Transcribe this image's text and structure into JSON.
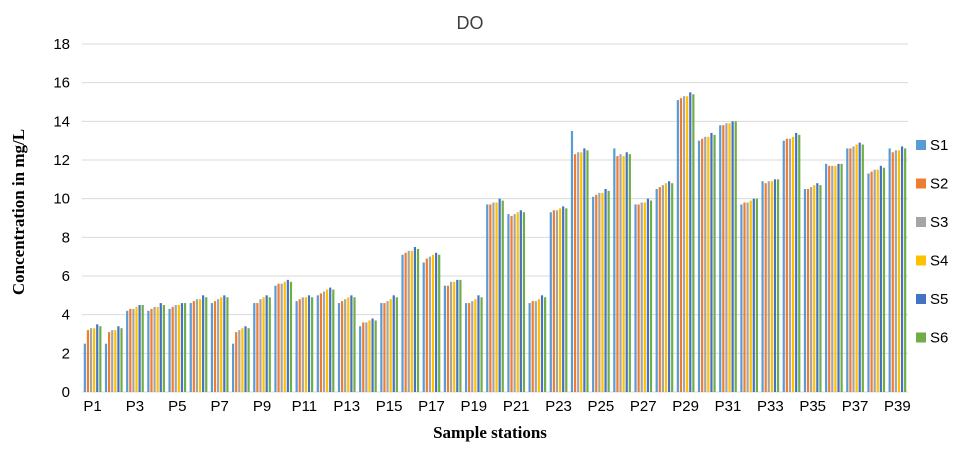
{
  "chart_data": {
    "type": "bar",
    "title": "DO",
    "xlabel": "Sample stations",
    "ylabel": "Concentration in mg/L",
    "ylim": [
      0,
      18
    ],
    "yticks": [
      0,
      2,
      4,
      6,
      8,
      10,
      12,
      14,
      16,
      18
    ],
    "grid": true,
    "legend_position": "right",
    "categories": [
      "P1",
      "P2",
      "P3",
      "P4",
      "P5",
      "P6",
      "P7",
      "P8",
      "P9",
      "P10",
      "P11",
      "P12",
      "P13",
      "P14",
      "P15",
      "P16",
      "P17",
      "P18",
      "P19",
      "P20",
      "P21",
      "P22",
      "P23",
      "P24",
      "P25",
      "P26",
      "P27",
      "P28",
      "P29",
      "P30",
      "P31",
      "P32",
      "P33",
      "P34",
      "P35",
      "P36",
      "P37",
      "P38",
      "P39"
    ],
    "xtick_labels": [
      "P1",
      "",
      "P3",
      "",
      "P5",
      "",
      "P7",
      "",
      "P9",
      "",
      "P11",
      "",
      "P13",
      "",
      "P15",
      "",
      "P17",
      "",
      "P19",
      "",
      "P21",
      "",
      "P23",
      "",
      "P25",
      "",
      "P27",
      "",
      "P29",
      "",
      "P31",
      "",
      "P33",
      "",
      "P35",
      "",
      "P37",
      "",
      "P39"
    ],
    "series": [
      {
        "name": "S1",
        "color": "#5b9bd5",
        "values": [
          2.5,
          2.5,
          4.2,
          4.2,
          4.3,
          4.6,
          4.6,
          2.5,
          4.6,
          5.5,
          4.7,
          5.0,
          4.6,
          3.4,
          4.6,
          7.1,
          6.7,
          5.5,
          4.6,
          9.7,
          9.2,
          4.6,
          9.3,
          13.5,
          10.1,
          12.6,
          9.7,
          10.5,
          15.1,
          13.0,
          13.8,
          9.7,
          10.9,
          13.0,
          10.5,
          11.8,
          12.6,
          11.3,
          12.6
        ]
      },
      {
        "name": "S2",
        "color": "#ed7d31",
        "values": [
          3.2,
          3.1,
          4.3,
          4.3,
          4.4,
          4.7,
          4.7,
          3.1,
          4.6,
          5.6,
          4.8,
          5.1,
          4.7,
          3.6,
          4.6,
          7.2,
          6.9,
          5.5,
          4.6,
          9.7,
          9.1,
          4.7,
          9.4,
          12.3,
          10.2,
          12.2,
          9.7,
          10.6,
          15.2,
          13.1,
          13.8,
          9.8,
          10.8,
          13.1,
          10.5,
          11.7,
          12.6,
          11.4,
          12.4
        ]
      },
      {
        "name": "S3",
        "color": "#a5a5a5",
        "values": [
          3.3,
          3.2,
          4.3,
          4.4,
          4.5,
          4.8,
          4.8,
          3.2,
          4.8,
          5.6,
          4.9,
          5.2,
          4.8,
          3.6,
          4.7,
          7.3,
          7.0,
          5.7,
          4.7,
          9.8,
          9.2,
          4.7,
          9.4,
          12.4,
          10.3,
          12.3,
          9.8,
          10.7,
          15.3,
          13.2,
          13.9,
          9.8,
          10.9,
          13.1,
          10.6,
          11.7,
          12.7,
          11.5,
          12.5
        ]
      },
      {
        "name": "S4",
        "color": "#ffc000",
        "values": [
          3.3,
          3.2,
          4.4,
          4.4,
          4.5,
          4.8,
          4.9,
          3.3,
          4.9,
          5.7,
          4.9,
          5.3,
          4.9,
          3.7,
          4.8,
          7.3,
          7.1,
          5.7,
          4.8,
          9.8,
          9.3,
          4.8,
          9.5,
          12.4,
          10.3,
          12.2,
          9.8,
          10.8,
          15.3,
          13.2,
          13.9,
          9.9,
          10.9,
          13.2,
          10.7,
          11.7,
          12.8,
          11.5,
          12.5
        ]
      },
      {
        "name": "S5",
        "color": "#4472c4",
        "values": [
          3.5,
          3.4,
          4.5,
          4.6,
          4.6,
          5.0,
          5.0,
          3.4,
          5.0,
          5.8,
          5.0,
          5.4,
          5.0,
          3.8,
          5.0,
          7.5,
          7.2,
          5.8,
          5.0,
          10.0,
          9.4,
          5.0,
          9.6,
          12.6,
          10.5,
          12.4,
          10.0,
          10.9,
          15.5,
          13.4,
          14.0,
          10.0,
          11.0,
          13.4,
          10.8,
          11.8,
          12.9,
          11.7,
          12.7
        ]
      },
      {
        "name": "S6",
        "color": "#70ad47",
        "values": [
          3.4,
          3.3,
          4.5,
          4.5,
          4.6,
          4.9,
          4.9,
          3.3,
          4.9,
          5.7,
          4.9,
          5.3,
          4.9,
          3.7,
          4.9,
          7.4,
          7.1,
          5.8,
          4.9,
          9.9,
          9.3,
          4.9,
          9.5,
          12.5,
          10.4,
          12.3,
          9.9,
          10.8,
          15.4,
          13.3,
          14.0,
          10.0,
          11.0,
          13.3,
          10.7,
          11.8,
          12.8,
          11.6,
          12.6
        ]
      }
    ]
  }
}
